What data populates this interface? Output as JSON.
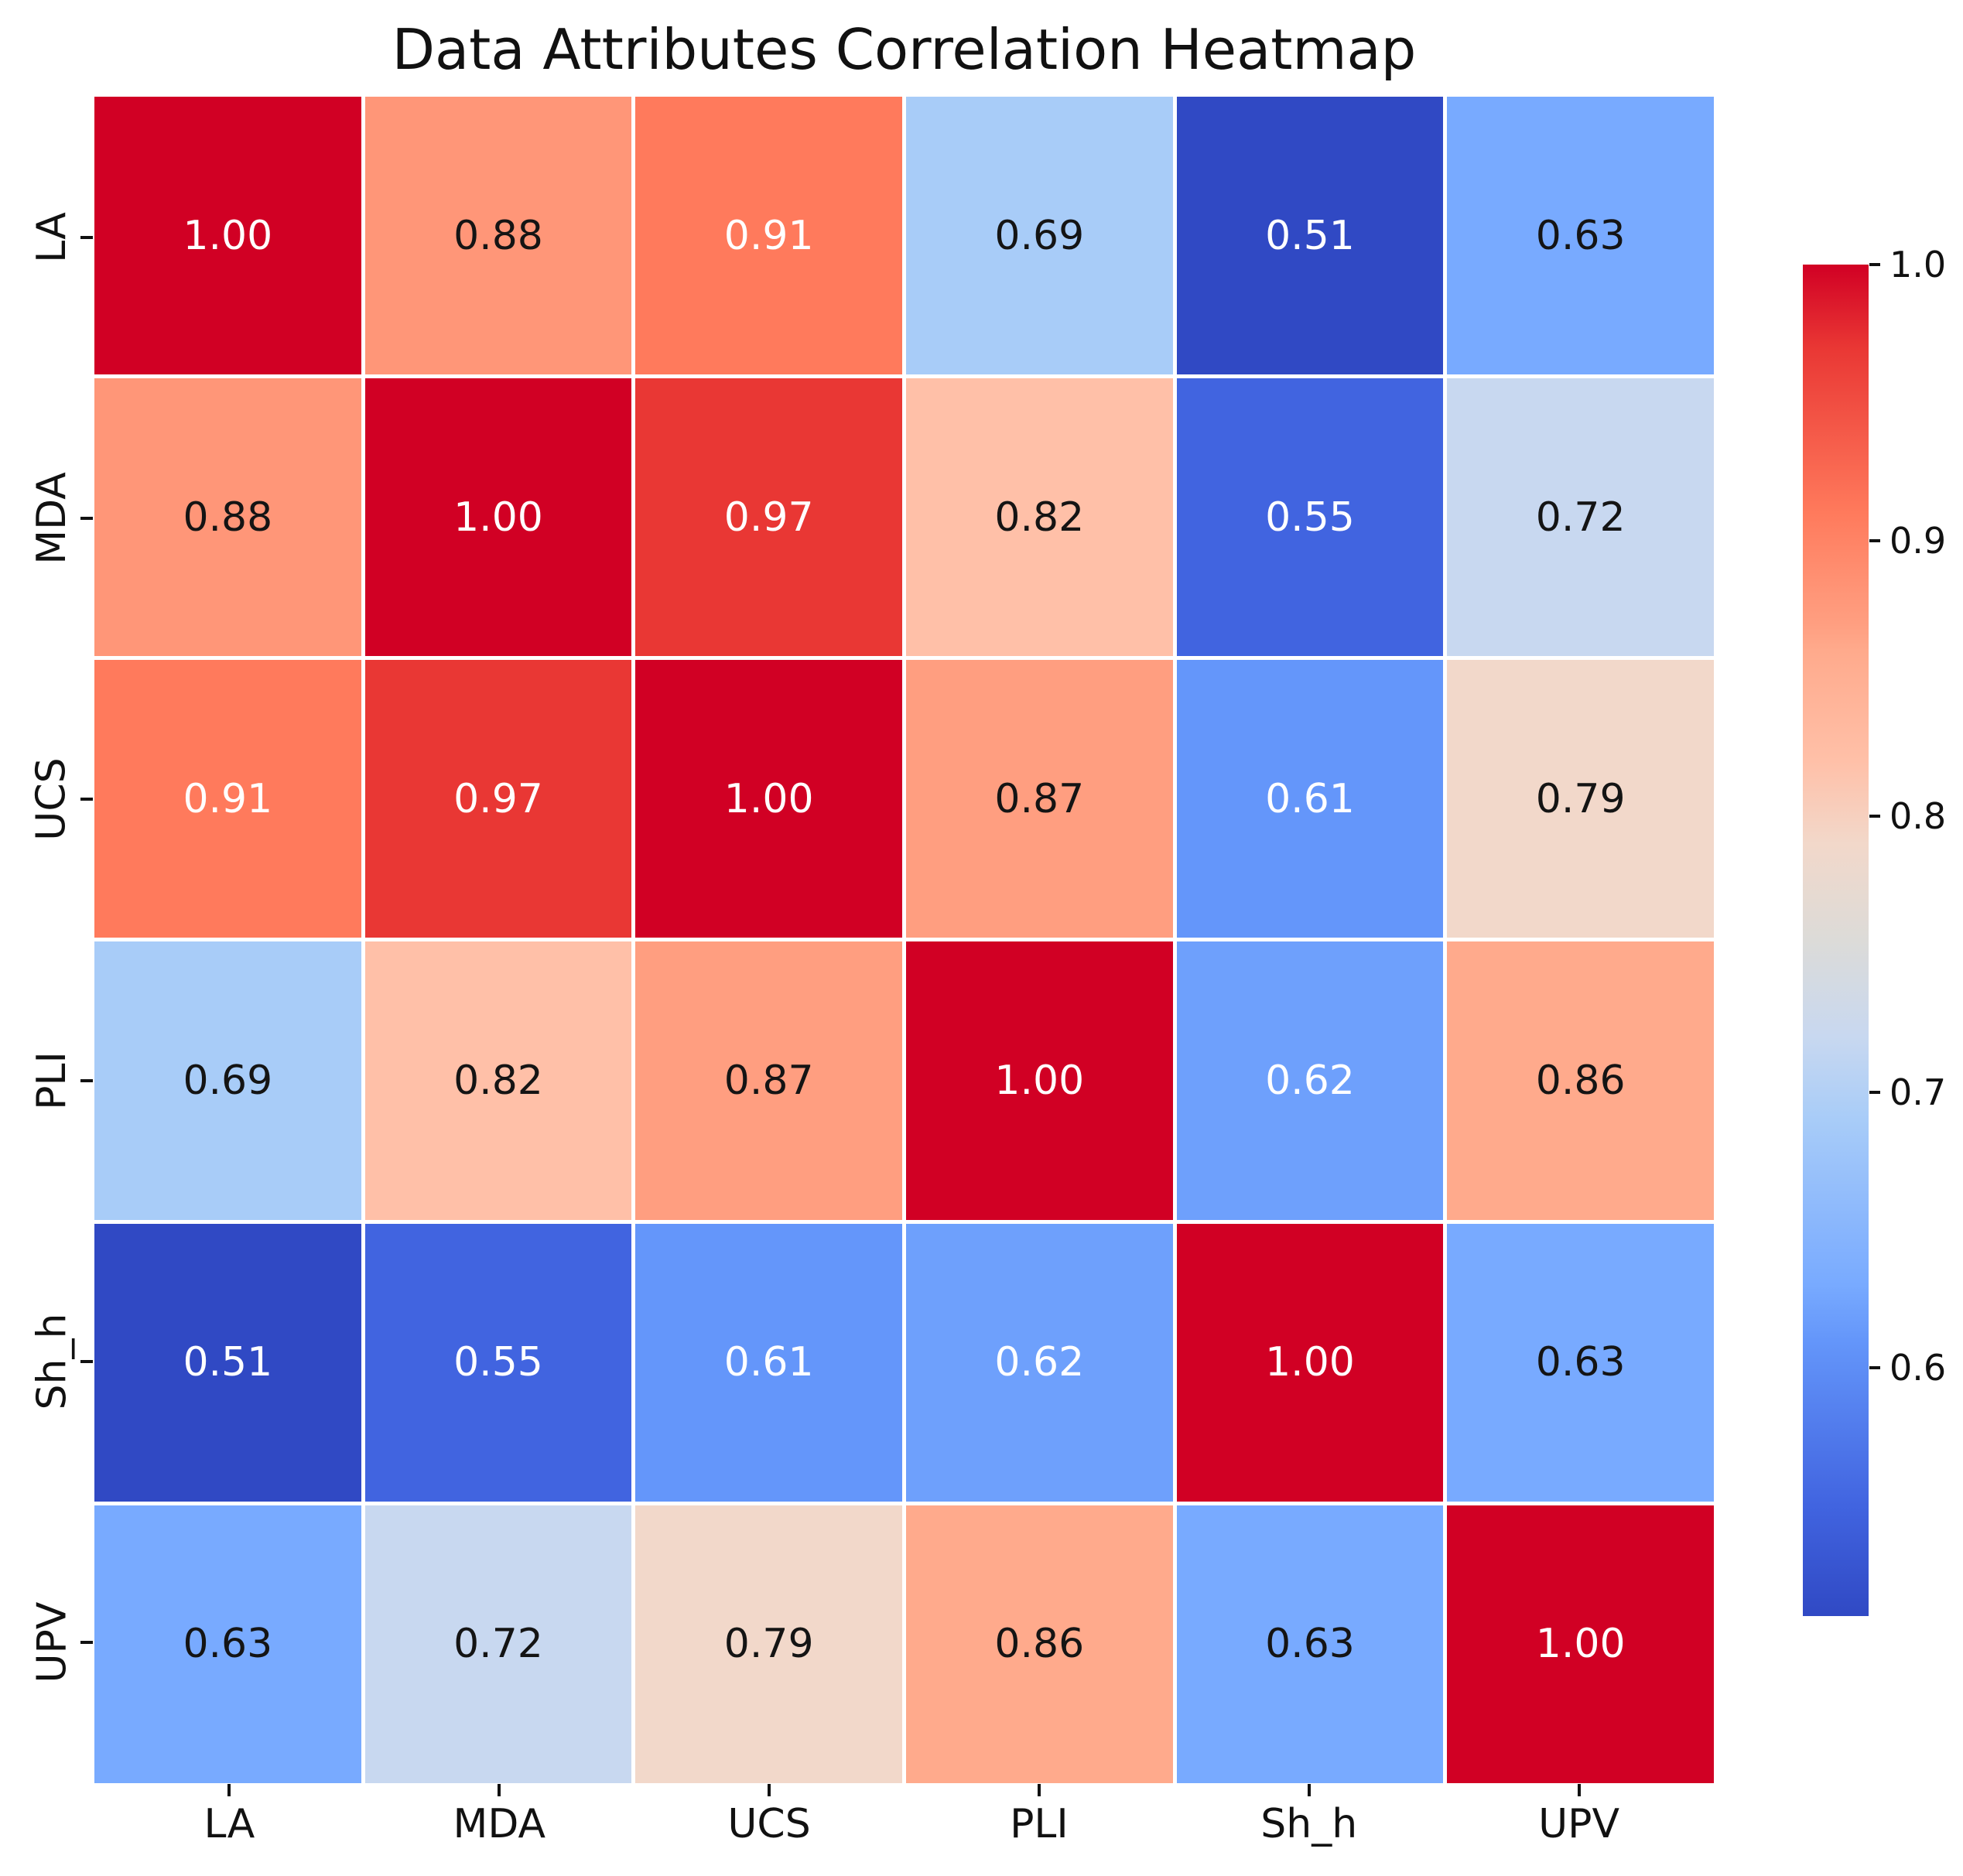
{
  "title": "Data Attributes Correlation Heatmap",
  "chart_data": {
    "type": "heatmap",
    "title": "Data Attributes Correlation Heatmap",
    "categories": [
      "LA",
      "MDA",
      "UCS",
      "PLI",
      "Sh_h",
      "UPV"
    ],
    "x_tick_labels": [
      "LA",
      "MDA",
      "UCS",
      "PLI",
      "Sh_h",
      "UPV"
    ],
    "y_tick_labels": [
      "LA",
      "MDA",
      "UCS",
      "PLI",
      "Sh_h",
      "UPV"
    ],
    "matrix": [
      [
        1.0,
        0.88,
        0.91,
        0.69,
        0.51,
        0.63
      ],
      [
        0.88,
        1.0,
        0.97,
        0.82,
        0.55,
        0.72
      ],
      [
        0.91,
        0.97,
        1.0,
        0.87,
        0.61,
        0.79
      ],
      [
        0.69,
        0.82,
        0.87,
        1.0,
        0.62,
        0.86
      ],
      [
        0.51,
        0.55,
        0.61,
        0.62,
        1.0,
        0.63
      ],
      [
        0.63,
        0.72,
        0.79,
        0.86,
        0.63,
        1.0
      ]
    ],
    "value_decimals": 2,
    "colormap": "coolwarm",
    "vmin": 0.51,
    "vmax": 1.0,
    "grid_line_color": "#ffffff",
    "colorbar": {
      "tick_labels": [
        "1.0",
        "0.9",
        "0.8",
        "0.7",
        "0.6"
      ],
      "tick_values": [
        1.0,
        0.9,
        0.8,
        0.7,
        0.6
      ]
    },
    "value_colors": {
      "1.00": "#d10024",
      "0.97": "#e93734",
      "0.91": "#ff7a5c",
      "0.88": "#ff9678",
      "0.87": "#ff9e80",
      "0.86": "#ffaa8c",
      "0.82": "#ffc0a8",
      "0.79": "#f2d8ca",
      "0.72": "#c8d8f0",
      "0.69": "#a8ccf8",
      "0.63": "#78aaff",
      "0.62": "#6ea0fc",
      "0.61": "#6496fa",
      "0.55": "#4164e0",
      "0.51": "#3049c4"
    },
    "midpoint_color": "#dcdbd8",
    "white_text_values": [
      "1.00",
      "0.97",
      "0.91",
      "0.62",
      "0.61",
      "0.55",
      "0.51"
    ],
    "dark_text_color": "#141414",
    "light_text_color": "#ffffff",
    "legend_position": "right"
  }
}
